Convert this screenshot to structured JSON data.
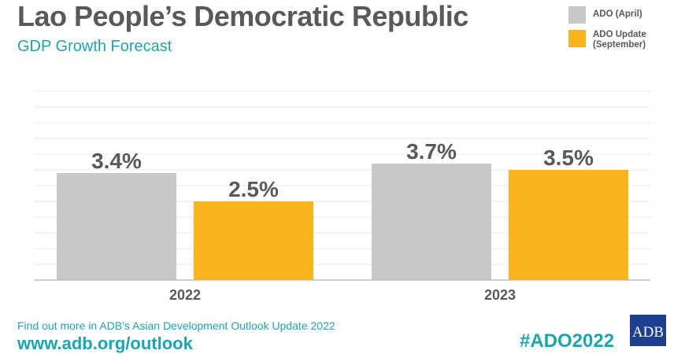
{
  "header": {
    "title": "Lao People’s Democratic Republic",
    "subtitle": "GDP Growth Forecast"
  },
  "legend": {
    "items": [
      {
        "label": "ADO (April)",
        "color": "#c6c8ca"
      },
      {
        "label": "ADO Update (September)",
        "color": "#f7b51b"
      }
    ]
  },
  "chart_data": {
    "type": "bar",
    "categories": [
      "2022",
      "2023"
    ],
    "series": [
      {
        "name": "ADO (April)",
        "values": [
          3.4,
          3.7
        ],
        "labels": [
          "3.4%",
          "3.7%"
        ],
        "color": "#c6c8ca"
      },
      {
        "name": "ADO Update (September)",
        "values": [
          2.5,
          3.5
        ],
        "labels": [
          "2.5%",
          "3.5%"
        ],
        "color": "#f7b51b"
      }
    ],
    "title": "GDP Growth Forecast",
    "ylim": [
      0,
      6
    ],
    "grid": true,
    "legend_position": "top-right"
  },
  "footer": {
    "line1": "Find out more in ADB’s Asian Development Outlook Update 2022",
    "line2": "www.adb.org/outlook",
    "hashtag": "#ADO2022",
    "logo_text": "ADB"
  }
}
